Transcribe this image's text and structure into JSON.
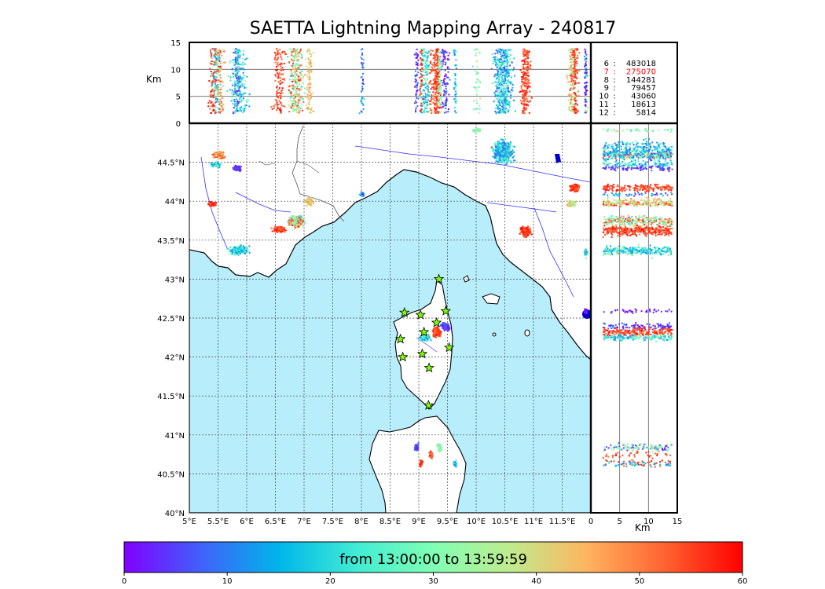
{
  "title": "SAETTA Lightning Mapping Array - 240817",
  "map": {
    "lon_ticks": [
      "5°E",
      "5.5°E",
      "6°E",
      "6.5°E",
      "7°E",
      "7.5°E",
      "8°E",
      "8.5°E",
      "9°E",
      "9.5°E",
      "10°E",
      "10.5°E",
      "11°E",
      "11.5°E"
    ],
    "lat_ticks": [
      "40°N",
      "40.5°N",
      "41°N",
      "41.5°N",
      "42°N",
      "42.5°N",
      "43°N",
      "43.5°N",
      "44°N",
      "44.5°N"
    ],
    "lon_range": [
      5,
      12
    ],
    "lat_range": [
      40,
      45
    ],
    "sea_color": "#b8eefc",
    "land_color": "#ffffff",
    "grid": "dotted",
    "station_icon": "star-icon",
    "station_color": "#7cfc00"
  },
  "alt_panel": {
    "ylabel": "Km",
    "yticks": [
      "0",
      "5",
      "10",
      "15"
    ],
    "yrange": [
      0,
      15
    ]
  },
  "side_panel": {
    "xlabel": "Km",
    "xticks": [
      "0",
      "5",
      "10",
      "15"
    ],
    "xrange": [
      0,
      15
    ]
  },
  "legend": [
    {
      "n": "6",
      "count": "483018",
      "color": "#000000"
    },
    {
      "n": "7",
      "count": "275070",
      "color": "#ff0000"
    },
    {
      "n": "8",
      "count": "144281",
      "color": "#000000"
    },
    {
      "n": "9",
      "count": "79457",
      "color": "#000000"
    },
    {
      "n": "10",
      "count": "43060",
      "color": "#000000"
    },
    {
      "n": "11",
      "count": "18613",
      "color": "#000000"
    },
    {
      "n": "12",
      "count": "5814",
      "color": "#000000"
    }
  ],
  "colorbar": {
    "label": "from 13:00:00 to 13:59:59",
    "ticks": [
      "0",
      "10",
      "20",
      "30",
      "40",
      "50",
      "60"
    ],
    "range": [
      0,
      60
    ],
    "colors": [
      "#8000ff",
      "#4062fa",
      "#00b5eb",
      "#40ecd4",
      "#80ffb4",
      "#c0eb8d",
      "#ffb360",
      "#ff6230",
      "#ff0000"
    ]
  },
  "stations": [
    {
      "lon": 9.35,
      "lat": 43.0
    },
    {
      "lon": 8.75,
      "lat": 42.57
    },
    {
      "lon": 9.03,
      "lat": 42.54
    },
    {
      "lon": 9.47,
      "lat": 42.59
    },
    {
      "lon": 9.31,
      "lat": 42.44
    },
    {
      "lon": 9.09,
      "lat": 42.32
    },
    {
      "lon": 8.68,
      "lat": 42.23
    },
    {
      "lon": 9.53,
      "lat": 42.12
    },
    {
      "lon": 9.06,
      "lat": 42.04
    },
    {
      "lon": 8.72,
      "lat": 42.0
    },
    {
      "lon": 9.18,
      "lat": 41.86
    },
    {
      "lon": 9.17,
      "lat": 41.38
    }
  ],
  "clusters": [
    {
      "lon": 5.5,
      "lat": 44.6,
      "rx": 0.12,
      "ry": 0.06,
      "n": 120,
      "t": [
        35,
        60
      ]
    },
    {
      "lon": 5.45,
      "lat": 44.48,
      "rx": 0.12,
      "ry": 0.05,
      "n": 80,
      "t": [
        10,
        30
      ]
    },
    {
      "lon": 5.82,
      "lat": 44.43,
      "rx": 0.1,
      "ry": 0.05,
      "n": 80,
      "t": [
        0,
        10
      ]
    },
    {
      "lon": 5.38,
      "lat": 43.97,
      "rx": 0.1,
      "ry": 0.04,
      "n": 60,
      "t": [
        50,
        60
      ]
    },
    {
      "lon": 6.85,
      "lat": 43.75,
      "rx": 0.18,
      "ry": 0.1,
      "n": 260,
      "t": [
        20,
        60
      ]
    },
    {
      "lon": 6.55,
      "lat": 43.65,
      "rx": 0.15,
      "ry": 0.05,
      "n": 120,
      "t": [
        50,
        60
      ]
    },
    {
      "lon": 7.08,
      "lat": 44.0,
      "rx": 0.1,
      "ry": 0.07,
      "n": 90,
      "t": [
        35,
        50
      ]
    },
    {
      "lon": 5.85,
      "lat": 43.38,
      "rx": 0.22,
      "ry": 0.08,
      "n": 200,
      "t": [
        10,
        30
      ]
    },
    {
      "lon": 8.0,
      "lat": 44.1,
      "rx": 0.05,
      "ry": 0.04,
      "n": 40,
      "t": [
        0,
        20
      ]
    },
    {
      "lon": 10.45,
      "lat": 44.65,
      "rx": 0.25,
      "ry": 0.2,
      "n": 450,
      "t": [
        5,
        30
      ]
    },
    {
      "lon": 10.0,
      "lat": 44.92,
      "rx": 0.08,
      "ry": 0.03,
      "n": 40,
      "t": [
        25,
        40
      ]
    },
    {
      "lon": 11.7,
      "lat": 44.18,
      "rx": 0.1,
      "ry": 0.07,
      "n": 150,
      "t": [
        50,
        60
      ]
    },
    {
      "lon": 11.65,
      "lat": 43.98,
      "rx": 0.1,
      "ry": 0.05,
      "n": 80,
      "t": [
        30,
        50
      ]
    },
    {
      "lon": 10.85,
      "lat": 43.62,
      "rx": 0.12,
      "ry": 0.09,
      "n": 200,
      "t": [
        50,
        60
      ]
    },
    {
      "lon": 11.9,
      "lat": 43.35,
      "rx": 0.05,
      "ry": 0.08,
      "n": 40,
      "t": [
        10,
        40
      ]
    },
    {
      "lon": 9.45,
      "lat": 42.4,
      "rx": 0.1,
      "ry": 0.07,
      "n": 100,
      "t": [
        0,
        10
      ]
    },
    {
      "lon": 9.3,
      "lat": 42.33,
      "rx": 0.09,
      "ry": 0.08,
      "n": 200,
      "t": [
        50,
        60
      ]
    },
    {
      "lon": 9.1,
      "lat": 42.26,
      "rx": 0.12,
      "ry": 0.06,
      "n": 150,
      "t": [
        10,
        35
      ]
    },
    {
      "lon": 8.95,
      "lat": 40.85,
      "rx": 0.05,
      "ry": 0.07,
      "n": 50,
      "t": [
        0,
        10
      ]
    },
    {
      "lon": 9.35,
      "lat": 40.85,
      "rx": 0.06,
      "ry": 0.07,
      "n": 60,
      "t": [
        25,
        40
      ]
    },
    {
      "lon": 9.2,
      "lat": 40.75,
      "rx": 0.04,
      "ry": 0.06,
      "n": 40,
      "t": [
        50,
        60
      ]
    },
    {
      "lon": 9.03,
      "lat": 40.65,
      "rx": 0.04,
      "ry": 0.07,
      "n": 40,
      "t": [
        50,
        60
      ]
    },
    {
      "lon": 9.62,
      "lat": 40.63,
      "rx": 0.04,
      "ry": 0.06,
      "n": 40,
      "t": [
        10,
        25
      ]
    },
    {
      "lon": 11.9,
      "lat": 42.6,
      "rx": 0.03,
      "ry": 0.04,
      "n": 40,
      "t": [
        0,
        5
      ]
    }
  ]
}
